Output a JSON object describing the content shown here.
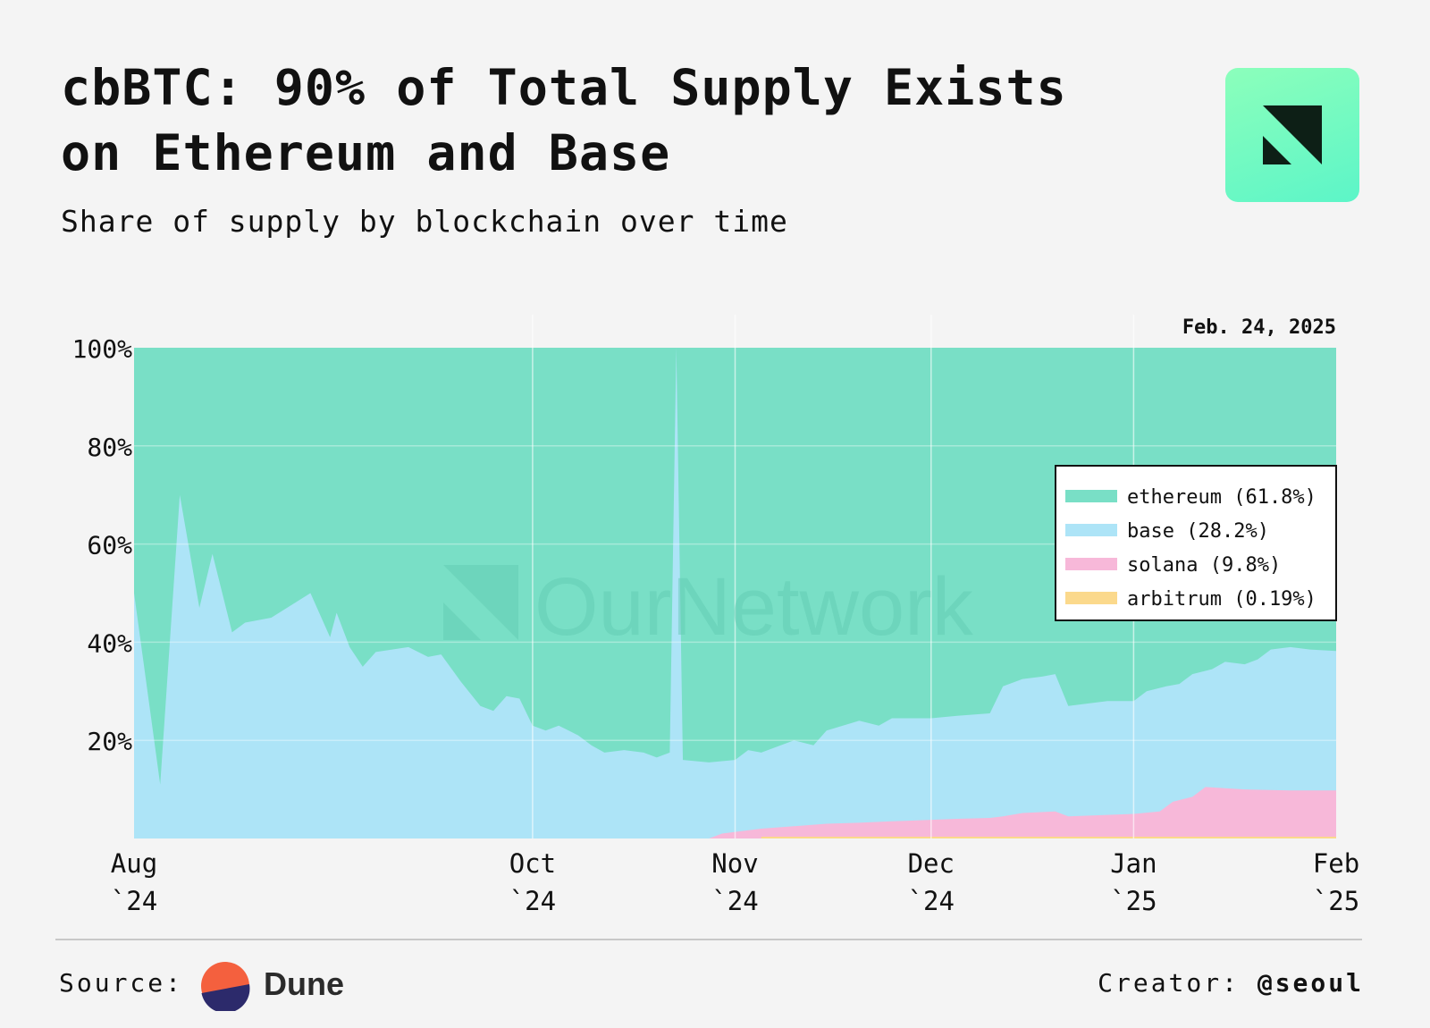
{
  "header": {
    "title_prefix": "cbBTC:",
    "title_rest": " 90% of Total Supply Exists on Ethereum and Base",
    "subtitle": "Share of supply by blockchain over time"
  },
  "footer": {
    "source_label": "Source:",
    "source_name": "Dune",
    "creator_label": "Creator:",
    "creator_handle": "@seoul"
  },
  "watermark": "OurNetwork",
  "colors": {
    "ethereum": "#79dfc6",
    "base": "#ade4f7",
    "solana": "#f7b8d9",
    "arbitrum": "#fbd98c",
    "background": "#f4f4f4"
  },
  "chart_data": {
    "type": "area",
    "stacked": true,
    "normalized": true,
    "date_label": "Feb. 24, 2025",
    "ylim": [
      0,
      100
    ],
    "y_ticks": [
      "20%",
      "40%",
      "60%",
      "80%",
      "100%"
    ],
    "y_tick_values": [
      20,
      40,
      60,
      80,
      100
    ],
    "x_ticks": [
      {
        "date": "2024-08-01",
        "label": [
          "Aug",
          "`24"
        ]
      },
      {
        "date": "2024-10-01",
        "label": [
          "Oct",
          "`24"
        ]
      },
      {
        "date": "2024-11-01",
        "label": [
          "Nov",
          "`24"
        ]
      },
      {
        "date": "2024-12-01",
        "label": [
          "Dec",
          "`24"
        ]
      },
      {
        "date": "2025-01-01",
        "label": [
          "Jan",
          "`25"
        ]
      },
      {
        "date": "2025-02-01",
        "label": [
          "Feb",
          "`25"
        ]
      }
    ],
    "x_range": [
      "2024-08-01",
      "2025-02-01"
    ],
    "grid": true,
    "legend_position": "right",
    "legend": [
      {
        "label": "ethereum (61.8%)",
        "color": "#79dfc6"
      },
      {
        "label": "base (28.2%)",
        "color": "#ade4f7"
      },
      {
        "label": "solana (9.8%)",
        "color": "#f7b8d9"
      },
      {
        "label": "arbitrum (0.19%)",
        "color": "#fbd98c"
      }
    ],
    "series": [
      {
        "name": "solana",
        "points": [
          [
            "2024-10-28",
            0
          ],
          [
            "2024-10-30",
            1
          ],
          [
            "2024-11-02",
            1.5
          ],
          [
            "2024-11-05",
            2
          ],
          [
            "2024-11-10",
            2.5
          ],
          [
            "2024-11-15",
            3
          ],
          [
            "2024-11-20",
            3.2
          ],
          [
            "2024-11-25",
            3.5
          ],
          [
            "2024-12-01",
            3.8
          ],
          [
            "2024-12-05",
            4
          ],
          [
            "2024-12-10",
            4.2
          ],
          [
            "2024-12-12",
            4.5
          ],
          [
            "2024-12-15",
            5.2
          ],
          [
            "2024-12-20",
            5.5
          ],
          [
            "2024-12-22",
            4.5
          ],
          [
            "2024-12-28",
            4.8
          ],
          [
            "2025-01-01",
            5
          ],
          [
            "2025-01-05",
            5.5
          ],
          [
            "2025-01-07",
            7.5
          ],
          [
            "2025-01-10",
            8.5
          ],
          [
            "2025-01-12",
            10.5
          ],
          [
            "2025-01-18",
            10
          ],
          [
            "2025-01-25",
            9.8
          ],
          [
            "2025-02-01",
            9.8
          ]
        ]
      },
      {
        "name": "base",
        "points": [
          [
            "2024-08-01",
            50
          ],
          [
            "2024-08-05",
            11
          ],
          [
            "2024-08-08",
            70
          ],
          [
            "2024-08-11",
            47
          ],
          [
            "2024-08-13",
            58
          ],
          [
            "2024-08-16",
            42
          ],
          [
            "2024-08-18",
            44
          ],
          [
            "2024-08-22",
            45
          ],
          [
            "2024-08-28",
            50
          ],
          [
            "2024-08-31",
            41
          ],
          [
            "2024-09-01",
            46
          ],
          [
            "2024-09-03",
            39
          ],
          [
            "2024-09-05",
            35
          ],
          [
            "2024-09-07",
            38
          ],
          [
            "2024-09-12",
            39
          ],
          [
            "2024-09-15",
            37
          ],
          [
            "2024-09-17",
            37.5
          ],
          [
            "2024-09-20",
            32
          ],
          [
            "2024-09-23",
            27
          ],
          [
            "2024-09-25",
            26
          ],
          [
            "2024-09-27",
            29
          ],
          [
            "2024-09-29",
            28.5
          ],
          [
            "2024-10-01",
            23
          ],
          [
            "2024-10-03",
            22
          ],
          [
            "2024-10-05",
            23
          ],
          [
            "2024-10-08",
            21
          ],
          [
            "2024-10-10",
            19
          ],
          [
            "2024-10-12",
            17.5
          ],
          [
            "2024-10-15",
            18
          ],
          [
            "2024-10-18",
            17.5
          ],
          [
            "2024-10-20",
            16.5
          ],
          [
            "2024-10-22",
            17.5
          ],
          [
            "2024-10-23",
            100
          ],
          [
            "2024-10-24",
            16
          ],
          [
            "2024-10-28",
            15.5
          ],
          [
            "2024-11-01",
            16
          ],
          [
            "2024-11-03",
            18
          ],
          [
            "2024-11-05",
            17.5
          ],
          [
            "2024-11-10",
            20
          ],
          [
            "2024-11-13",
            19
          ],
          [
            "2024-11-15",
            22
          ],
          [
            "2024-11-20",
            24
          ],
          [
            "2024-11-23",
            23
          ],
          [
            "2024-11-25",
            24.5
          ],
          [
            "2024-12-01",
            24.5
          ],
          [
            "2024-12-05",
            25
          ],
          [
            "2024-12-10",
            25.5
          ],
          [
            "2024-12-12",
            31
          ],
          [
            "2024-12-15",
            32.5
          ],
          [
            "2024-12-18",
            33
          ],
          [
            "2024-12-20",
            33.5
          ],
          [
            "2024-12-22",
            27
          ],
          [
            "2024-12-25",
            27.5
          ],
          [
            "2024-12-28",
            28
          ],
          [
            "2025-01-01",
            28
          ],
          [
            "2025-01-03",
            30
          ],
          [
            "2025-01-06",
            31
          ],
          [
            "2025-01-08",
            31.5
          ],
          [
            "2025-01-10",
            33.5
          ],
          [
            "2025-01-13",
            34.5
          ],
          [
            "2025-01-15",
            36
          ],
          [
            "2025-01-18",
            35.5
          ],
          [
            "2025-01-20",
            36.5
          ],
          [
            "2025-01-22",
            38.5
          ],
          [
            "2025-01-25",
            39
          ],
          [
            "2025-01-28",
            38.5
          ],
          [
            "2025-02-01",
            38.2
          ]
        ]
      },
      {
        "name": "ethereum",
        "points": [
          [
            "2024-08-01",
            100
          ],
          [
            "2025-02-01",
            100
          ]
        ]
      },
      {
        "name": "arbitrum",
        "points": [
          [
            "2024-11-05",
            0.19
          ],
          [
            "2025-02-01",
            0.19
          ]
        ]
      }
    ]
  }
}
